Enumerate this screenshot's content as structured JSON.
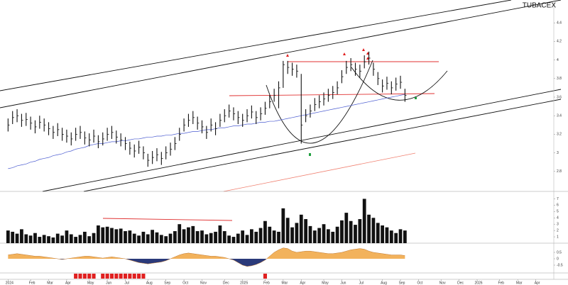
{
  "chart_data": [
    {
      "type": "ohlc",
      "title": "TUBACEX",
      "color": "#111111",
      "high": [
        3.37,
        3.45,
        3.47,
        3.42,
        3.43,
        3.39,
        3.35,
        3.4,
        3.37,
        3.33,
        3.29,
        3.32,
        3.27,
        3.25,
        3.22,
        3.27,
        3.29,
        3.23,
        3.21,
        3.25,
        3.19,
        3.22,
        3.27,
        3.29,
        3.24,
        3.21,
        3.17,
        3.12,
        3.09,
        3.13,
        3.07,
        2.99,
        3.02,
        3.05,
        3.01,
        3.07,
        3.11,
        3.17,
        3.27,
        3.37,
        3.42,
        3.45,
        3.39,
        3.35,
        3.29,
        3.37,
        3.33,
        3.42,
        3.47,
        3.52,
        3.49,
        3.45,
        3.42,
        3.47,
        3.51,
        3.45,
        3.49,
        3.55,
        3.62,
        3.69,
        3.77,
        3.99,
        3.99,
        3.97,
        3.95,
        3.85,
        3.47,
        3.52,
        3.59,
        3.62,
        3.65,
        3.69,
        3.72,
        3.77,
        3.89,
        3.99,
        4.02,
        3.97,
        3.95,
        4.05,
        4.09,
        3.97,
        3.87,
        3.79,
        3.82,
        3.77,
        3.81,
        3.83,
        3.69
      ],
      "low": [
        3.23,
        3.31,
        3.33,
        3.28,
        3.29,
        3.25,
        3.21,
        3.26,
        3.23,
        3.19,
        3.15,
        3.18,
        3.13,
        3.11,
        3.08,
        3.13,
        3.15,
        3.09,
        3.07,
        3.11,
        3.05,
        3.08,
        3.13,
        3.15,
        3.1,
        3.07,
        3.03,
        2.98,
        2.95,
        2.99,
        2.93,
        2.85,
        2.88,
        2.91,
        2.87,
        2.93,
        2.97,
        3.03,
        3.13,
        3.23,
        3.28,
        3.31,
        3.25,
        3.21,
        3.15,
        3.23,
        3.19,
        3.28,
        3.33,
        3.38,
        3.35,
        3.31,
        3.28,
        3.33,
        3.37,
        3.31,
        3.35,
        3.41,
        3.48,
        3.55,
        3.48,
        3.7,
        3.85,
        3.83,
        3.81,
        3.1,
        3.33,
        3.38,
        3.45,
        3.48,
        3.51,
        3.55,
        3.58,
        3.63,
        3.75,
        3.85,
        3.88,
        3.83,
        3.81,
        3.91,
        3.95,
        3.83,
        3.73,
        3.65,
        3.68,
        3.63,
        3.67,
        3.69,
        3.55
      ],
      "close": [
        3.3,
        3.38,
        3.4,
        3.35,
        3.36,
        3.32,
        3.28,
        3.33,
        3.3,
        3.26,
        3.22,
        3.25,
        3.2,
        3.18,
        3.15,
        3.2,
        3.22,
        3.16,
        3.14,
        3.18,
        3.12,
        3.15,
        3.2,
        3.22,
        3.17,
        3.14,
        3.1,
        3.05,
        3.02,
        3.06,
        3.0,
        2.92,
        2.95,
        2.98,
        2.94,
        3.0,
        3.04,
        3.1,
        3.2,
        3.3,
        3.35,
        3.38,
        3.32,
        3.28,
        3.22,
        3.3,
        3.26,
        3.35,
        3.4,
        3.45,
        3.42,
        3.38,
        3.35,
        3.4,
        3.44,
        3.38,
        3.42,
        3.48,
        3.55,
        3.62,
        3.7,
        3.95,
        3.92,
        3.9,
        3.88,
        3.3,
        3.4,
        3.45,
        3.52,
        3.55,
        3.58,
        3.62,
        3.65,
        3.7,
        3.82,
        3.92,
        3.95,
        3.9,
        3.88,
        3.98,
        4.02,
        3.9,
        3.8,
        3.72,
        3.75,
        3.7,
        3.74,
        3.76,
        3.62
      ],
      "overlays": [
        {
          "color": "#4a5bd0",
          "values": [
            2.83,
            2.84,
            2.86,
            2.87,
            2.88,
            2.9,
            2.91,
            2.93,
            2.94,
            2.95,
            2.97,
            2.98,
            2.99,
            3.01,
            3.02,
            3.04,
            3.05,
            3.06,
            3.08,
            3.09,
            3.1,
            3.1,
            3.11,
            3.12,
            3.12,
            3.13,
            3.13,
            3.14,
            3.15,
            3.15,
            3.16,
            3.17,
            3.17,
            3.18,
            3.18,
            3.19,
            3.19,
            3.2,
            3.21,
            3.21,
            3.22,
            3.23,
            3.23,
            3.24,
            3.25,
            3.25,
            3.26,
            3.27,
            3.27,
            3.28,
            3.29,
            3.29,
            3.3,
            3.31,
            3.31,
            3.32,
            3.33,
            3.33,
            3.34,
            3.34,
            3.35,
            3.36,
            3.37,
            3.38,
            3.39,
            3.4,
            3.41,
            3.42,
            3.43,
            3.44,
            3.45,
            3.46,
            3.47,
            3.48,
            3.49,
            3.5,
            3.51,
            3.52,
            3.53,
            3.54,
            3.55,
            3.56,
            3.57,
            3.58,
            3.59,
            3.6,
            3.61,
            3.62,
            3.63
          ]
        }
      ],
      "ylim": [
        2.6,
        4.6
      ],
      "yticks": [
        2.8,
        3,
        3.2,
        3.4,
        3.6,
        3.8,
        4,
        4.2,
        4.4
      ],
      "xlim": [
        -1,
        121
      ],
      "xticks": [
        {
          "value": 0,
          "label": "2024"
        },
        {
          "value": 5,
          "label": "Feb"
        },
        {
          "value": 9,
          "label": "Mar"
        },
        {
          "value": 13,
          "label": "Apr"
        },
        {
          "value": 18,
          "label": "May"
        },
        {
          "value": 22,
          "label": "Jun"
        },
        {
          "value": 26,
          "label": "Jul"
        },
        {
          "value": 31,
          "label": "Aug"
        },
        {
          "value": 35,
          "label": "Sep"
        },
        {
          "value": 39,
          "label": "Oct"
        },
        {
          "value": 43,
          "label": "Nov"
        },
        {
          "value": 48,
          "label": "Dec"
        },
        {
          "value": 52,
          "label": "2025"
        },
        {
          "value": 57,
          "label": "Feb"
        },
        {
          "value": 61,
          "label": "Mar"
        },
        {
          "value": 65,
          "label": "Apr"
        },
        {
          "value": 70,
          "label": "May"
        },
        {
          "value": 74,
          "label": "Jun"
        },
        {
          "value": 78,
          "label": "Jul"
        },
        {
          "value": 83,
          "label": "Aug"
        },
        {
          "value": 87,
          "label": "Sep"
        },
        {
          "value": 91,
          "label": "Oct"
        },
        {
          "value": 96,
          "label": "Nov"
        },
        {
          "value": 100,
          "label": "Dec"
        },
        {
          "value": 104,
          "label": "2026"
        },
        {
          "value": 109,
          "label": "Feb"
        },
        {
          "value": 113,
          "label": "Mar"
        },
        {
          "value": 117,
          "label": "Apr"
        }
      ]
    },
    {
      "type": "bar",
      "color": "#111111",
      "values": [
        2.0,
        1.8,
        1.5,
        2.2,
        1.4,
        1.2,
        1.6,
        1.0,
        1.3,
        1.1,
        0.9,
        1.5,
        1.2,
        2.0,
        1.4,
        1.0,
        1.3,
        1.8,
        1.1,
        1.6,
        2.8,
        2.5,
        2.6,
        2.4,
        2.2,
        2.3,
        1.9,
        2.0,
        1.5,
        1.2,
        1.8,
        1.4,
        2.1,
        1.7,
        1.3,
        1.1,
        1.5,
        1.9,
        3.0,
        2.2,
        2.5,
        2.7,
        1.9,
        2.0,
        1.4,
        1.6,
        1.8,
        2.8,
        1.9,
        1.2,
        1.0,
        1.5,
        2.0,
        1.3,
        2.2,
        1.8,
        2.4,
        3.5,
        2.6,
        2.0,
        1.8,
        5.5,
        4.0,
        2.5,
        3.2,
        4.5,
        3.8,
        2.7,
        2.0,
        2.4,
        3.0,
        2.2,
        1.8,
        2.6,
        3.6,
        4.8,
        3.5,
        2.9,
        3.8,
        7.0,
        4.5,
        4.0,
        3.2,
        2.8,
        2.5,
        2.0,
        1.6,
        2.2,
        2.0
      ],
      "ylim": [
        0,
        7.5
      ],
      "yticks": [
        1,
        2,
        3,
        4,
        5,
        6,
        7
      ]
    },
    {
      "type": "area",
      "color": "#f2b25c",
      "negative_color": "#2b3a7a",
      "values": [
        0.3,
        0.35,
        0.4,
        0.35,
        0.3,
        0.25,
        0.2,
        0.2,
        0.15,
        0.1,
        0.05,
        0.0,
        -0.05,
        0.0,
        0.05,
        0.1,
        0.15,
        0.2,
        0.2,
        0.15,
        0.1,
        0.05,
        0.1,
        0.15,
        0.1,
        0.05,
        0.0,
        -0.1,
        -0.2,
        -0.3,
        -0.35,
        -0.4,
        -0.35,
        -0.3,
        -0.25,
        -0.15,
        0.0,
        0.15,
        0.3,
        0.4,
        0.45,
        0.4,
        0.35,
        0.3,
        0.25,
        0.2,
        0.2,
        0.15,
        0.1,
        0.0,
        -0.1,
        -0.3,
        -0.5,
        -0.6,
        -0.55,
        -0.45,
        -0.3,
        -0.1,
        0.2,
        0.5,
        0.7,
        0.85,
        0.8,
        0.6,
        0.5,
        0.55,
        0.6,
        0.6,
        0.55,
        0.5,
        0.45,
        0.4,
        0.4,
        0.45,
        0.5,
        0.6,
        0.7,
        0.75,
        0.8,
        0.75,
        0.6,
        0.5,
        0.45,
        0.4,
        0.35,
        0.3,
        0.3,
        0.3,
        0.25
      ],
      "ylim": [
        -1,
        1
      ],
      "yticks": [
        -0.5,
        0,
        0.5
      ]
    },
    {
      "type": "signal",
      "color": "#e02020",
      "x": [
        15,
        16,
        17,
        18,
        19,
        21,
        22,
        23,
        24,
        25,
        26,
        27,
        28,
        29,
        30,
        57
      ]
    }
  ]
}
